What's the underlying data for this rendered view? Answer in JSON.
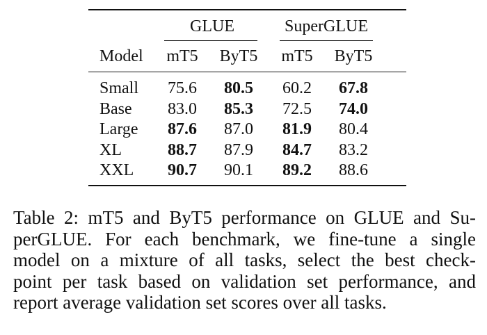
{
  "table": {
    "group_headers": [
      "GLUE",
      "SuperGLUE"
    ],
    "column_headers": [
      "Model",
      "mT5",
      "ByT5",
      "mT5",
      "ByT5"
    ],
    "rows": [
      {
        "model": "Small",
        "glue_mt5": "75.6",
        "glue_byt5": "80.5",
        "superglue_mt5": "60.2",
        "superglue_byt5": "67.8"
      },
      {
        "model": "Base",
        "glue_mt5": "83.0",
        "glue_byt5": "85.3",
        "superglue_mt5": "72.5",
        "superglue_byt5": "74.0"
      },
      {
        "model": "Large",
        "glue_mt5": "87.6",
        "glue_byt5": "87.0",
        "superglue_mt5": "81.9",
        "superglue_byt5": "80.4"
      },
      {
        "model": "XL",
        "glue_mt5": "88.7",
        "glue_byt5": "87.9",
        "superglue_mt5": "84.7",
        "superglue_byt5": "83.2"
      },
      {
        "model": "XXL",
        "glue_mt5": "90.7",
        "glue_byt5": "90.1",
        "superglue_mt5": "89.2",
        "superglue_byt5": "88.6"
      }
    ],
    "bold_cells": [
      [
        "glue_byt5",
        "superglue_byt5"
      ],
      [
        "glue_byt5",
        "superglue_byt5"
      ],
      [
        "glue_mt5",
        "superglue_mt5"
      ],
      [
        "glue_mt5",
        "superglue_mt5"
      ],
      [
        "glue_mt5",
        "superglue_mt5"
      ]
    ]
  },
  "caption": {
    "lines": [
      "Table 2: mT5 and ByT5 performance on GLUE and Su-",
      "perGLUE. For each benchmark, we fine-tune a single",
      "model on a mixture of all tasks, select the best check-",
      "point per task based on validation set performance, and",
      "report average validation set scores over all tasks."
    ]
  }
}
